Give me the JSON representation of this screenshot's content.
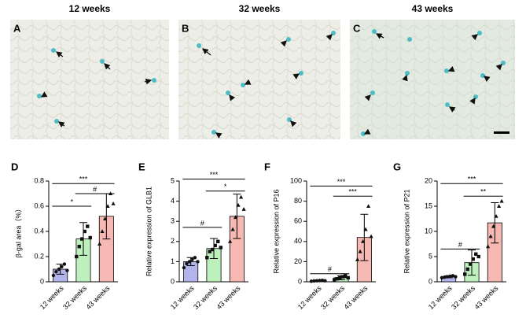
{
  "panels": [
    {
      "label": "A",
      "title": "12 weeks"
    },
    {
      "label": "B",
      "title": "32 weeks"
    },
    {
      "label": "C",
      "title": "43 weeks"
    }
  ],
  "chart_data": [
    {
      "type": "bar",
      "panel": "D",
      "ylabel": "β-gal area（%）",
      "categories": [
        "12 weeks",
        "32 weeks",
        "43 weeks"
      ],
      "colors": [
        "#b4b4ec",
        "#bdf0bd",
        "#f6b8b2"
      ],
      "values": [
        0.1,
        0.34,
        0.52
      ],
      "errors": [
        0.04,
        0.13,
        0.18
      ],
      "points": [
        [
          0.05,
          0.08,
          0.1,
          0.12,
          0.14,
          0.09
        ],
        [
          0.2,
          0.28,
          0.34,
          0.4,
          0.44,
          0.35
        ],
        [
          0.3,
          0.4,
          0.5,
          0.6,
          0.7,
          0.62
        ]
      ],
      "ylim": [
        0,
        0.8
      ],
      "yticks": [
        0,
        0.2,
        0.4,
        0.6,
        0.8
      ],
      "annotations": [
        {
          "from": 0,
          "to": 1,
          "y": 0.6,
          "label": "*"
        },
        {
          "from": 1,
          "to": 2,
          "y": 0.7,
          "label": "#"
        },
        {
          "from": 0,
          "to": 2,
          "y": 0.78,
          "label": "***"
        }
      ]
    },
    {
      "type": "bar",
      "panel": "E",
      "ylabel": "Relative expression of GLB1",
      "categories": [
        "12 weeks",
        "32 weeks",
        "43 weeks"
      ],
      "colors": [
        "#b4b4ec",
        "#bdf0bd",
        "#f6b8b2"
      ],
      "values": [
        1,
        1.65,
        3.25
      ],
      "errors": [
        0.2,
        0.5,
        1.1
      ],
      "points": [
        [
          0.7,
          0.9,
          1,
          1.1,
          1.2,
          1
        ],
        [
          1.2,
          1.5,
          1.6,
          1.8,
          2,
          1.7
        ],
        [
          2,
          2.6,
          3.2,
          3.8,
          4.2,
          3.6
        ]
      ],
      "ylim": [
        0,
        5
      ],
      "yticks": [
        0,
        1,
        2,
        3,
        4,
        5
      ],
      "annotations": [
        {
          "from": 0,
          "to": 1,
          "y": 2.7,
          "label": "#"
        },
        {
          "from": 1,
          "to": 2,
          "y": 4.5,
          "label": "*"
        },
        {
          "from": 0,
          "to": 2,
          "y": 5.1,
          "label": "***"
        }
      ]
    },
    {
      "type": "bar",
      "panel": "F",
      "ylabel": "Relative expression of P16",
      "categories": [
        "12 weeks",
        "32 weeks",
        "43 weeks"
      ],
      "colors": [
        "#b4b4ec",
        "#bdf0bd",
        "#f6b8b2"
      ],
      "values": [
        1,
        4,
        44
      ],
      "errors": [
        0.5,
        2,
        23
      ],
      "points": [
        [
          0.5,
          0.8,
          1,
          1.2,
          1.4,
          1
        ],
        [
          2,
          3,
          4,
          5,
          6,
          4
        ],
        [
          22,
          30,
          40,
          52,
          75,
          45
        ]
      ],
      "ylim": [
        0,
        100
      ],
      "yticks": [
        0,
        20,
        40,
        60,
        80,
        100
      ],
      "annotations": [
        {
          "from": 0,
          "to": 1,
          "y": 8,
          "label": "#"
        },
        {
          "from": 1,
          "to": 2,
          "y": 85,
          "label": "***"
        },
        {
          "from": 0,
          "to": 2,
          "y": 95,
          "label": "***"
        }
      ]
    },
    {
      "type": "bar",
      "panel": "G",
      "ylabel": "Relative expression of P21",
      "categories": [
        "12 weeks",
        "32 weeks",
        "43 weeks"
      ],
      "colors": [
        "#b4b4ec",
        "#bdf0bd",
        "#f6b8b2"
      ],
      "values": [
        1,
        3.8,
        11.7
      ],
      "errors": [
        0.2,
        2.5,
        4
      ],
      "points": [
        [
          0.8,
          0.9,
          1,
          1.1,
          1.2,
          1
        ],
        [
          1.5,
          2.5,
          3.5,
          4.5,
          5.5,
          5
        ],
        [
          7,
          9,
          11,
          13,
          15,
          16
        ]
      ],
      "ylim": [
        0,
        20
      ],
      "yticks": [
        0,
        5,
        10,
        15,
        20
      ],
      "annotations": [
        {
          "from": 0,
          "to": 1,
          "y": 6.5,
          "label": "#"
        },
        {
          "from": 1,
          "to": 2,
          "y": 17,
          "label": "**"
        },
        {
          "from": 0,
          "to": 2,
          "y": 19.5,
          "label": "***"
        }
      ]
    }
  ]
}
